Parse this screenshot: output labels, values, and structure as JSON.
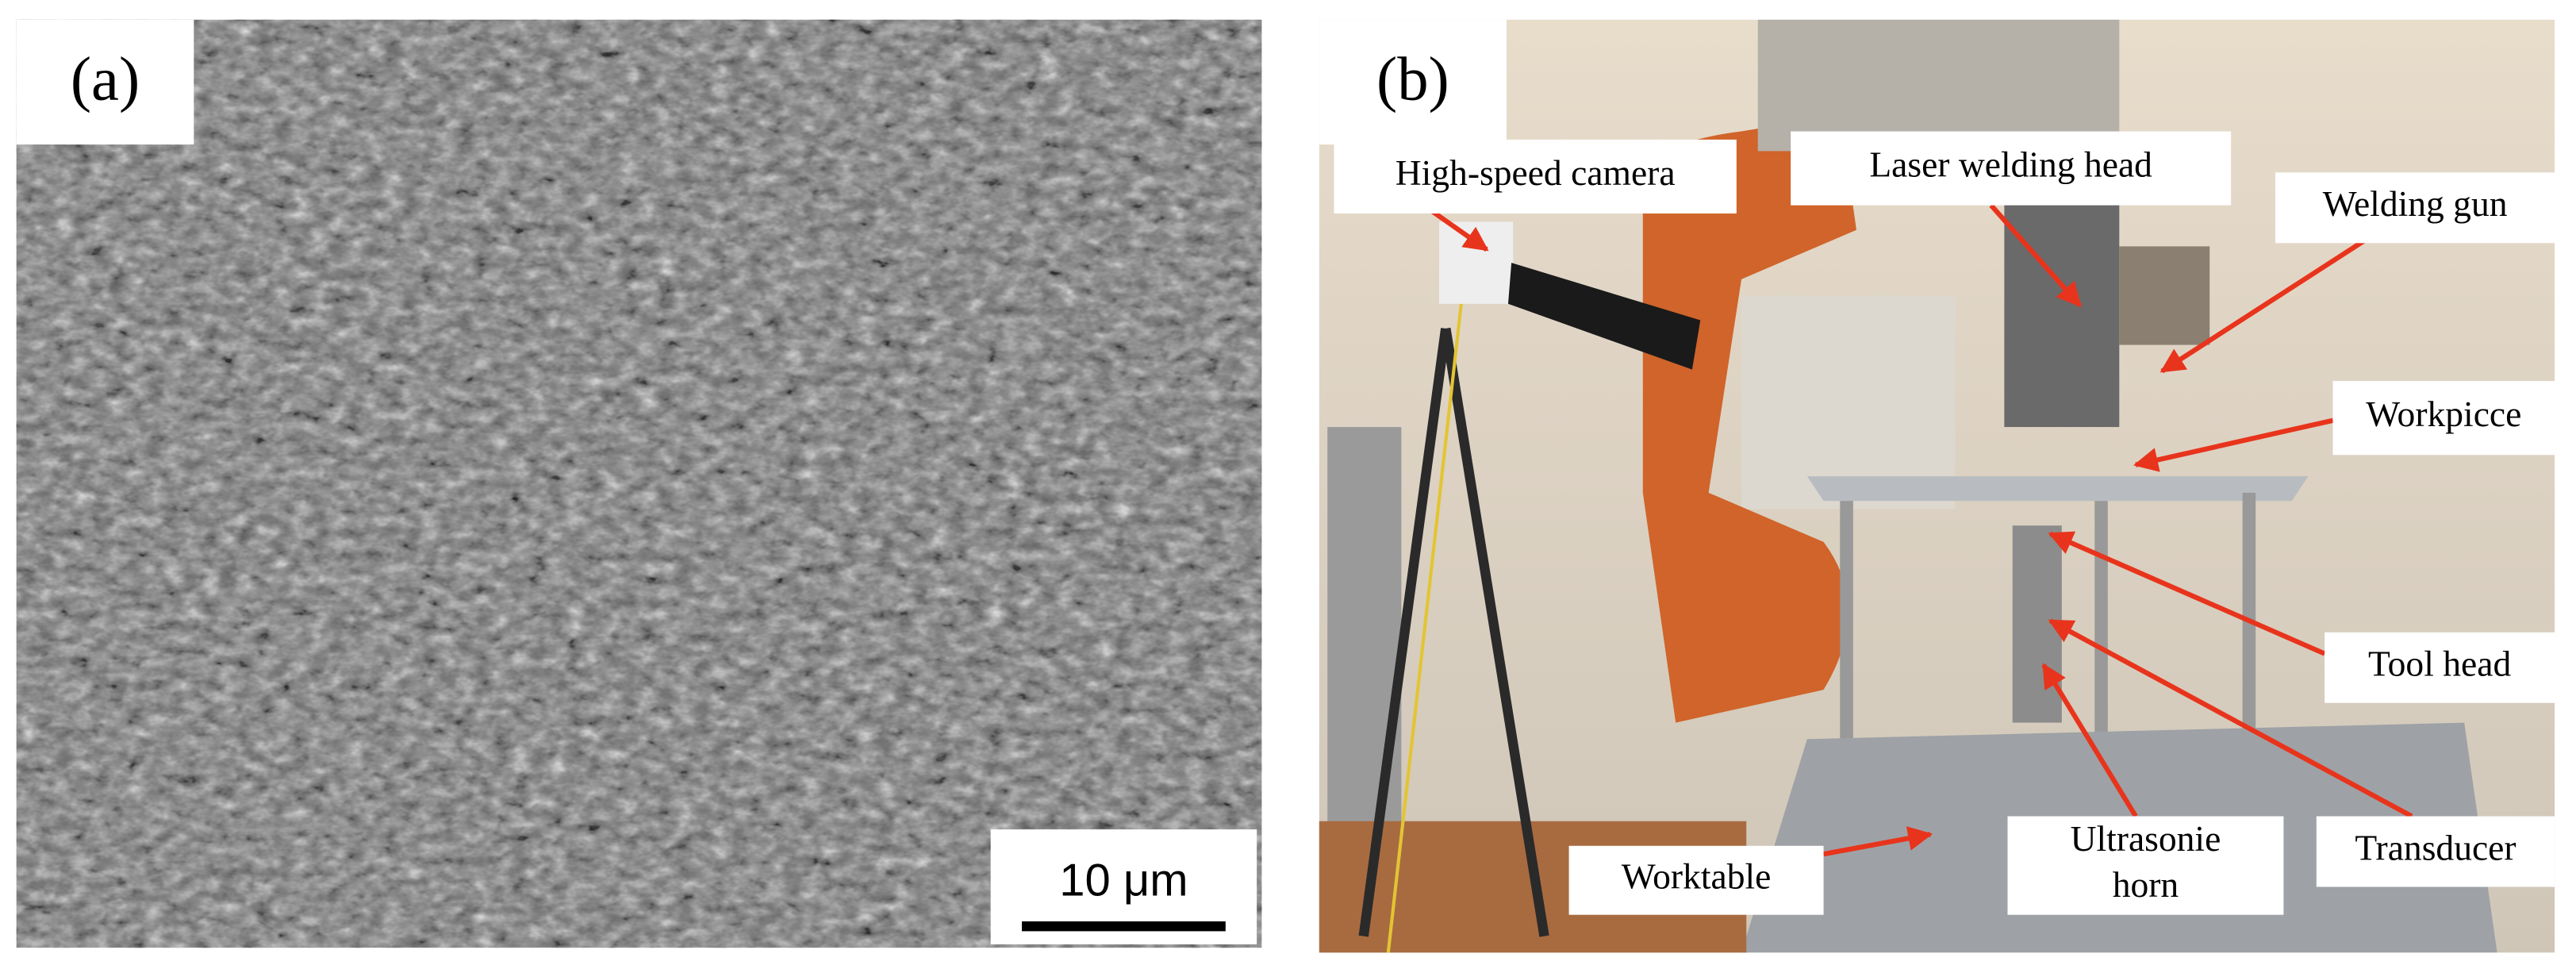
{
  "panels": [
    {
      "label": "(a)",
      "scale_bar": "10 μm"
    },
    {
      "label": "(b)",
      "annotations": [
        {
          "text": "High-speed camera"
        },
        {
          "text": "Laser welding head"
        },
        {
          "text": "Welding gun"
        },
        {
          "text": "Workpicce"
        },
        {
          "text": "Tool head"
        },
        {
          "text": "Transducer"
        },
        {
          "lines": [
            "Ultrasonie",
            "horn"
          ]
        },
        {
          "text": "Worktable"
        }
      ]
    }
  ]
}
